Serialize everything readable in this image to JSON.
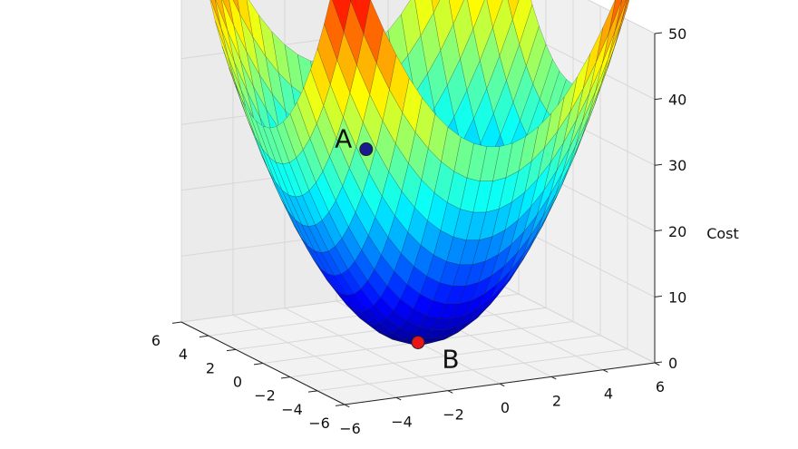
{
  "chart_data": {
    "type": "surface",
    "zlabel": "Cost",
    "x_ticks": [
      "−6",
      "−4",
      "−2",
      "0",
      "2",
      "4",
      "6"
    ],
    "y_ticks": [
      "−6",
      "−4",
      "−2",
      "0",
      "2",
      "4",
      "6"
    ],
    "z_ticks": [
      "0",
      "10",
      "20",
      "30",
      "40",
      "50"
    ],
    "xlim": [
      -6,
      6
    ],
    "ylim": [
      -6,
      6
    ],
    "zlim": [
      0,
      50
    ],
    "surface_function": "x^2 + y^2",
    "grid": 24,
    "grid_on": true,
    "colormap": "jet",
    "points": [
      {
        "label": "A",
        "x": -4.24,
        "y": -4.24,
        "z": 36,
        "color": "#1a1a8c"
      },
      {
        "label": "B",
        "x": 0,
        "y": 0,
        "z": 0,
        "color": "#e8161b"
      }
    ]
  }
}
